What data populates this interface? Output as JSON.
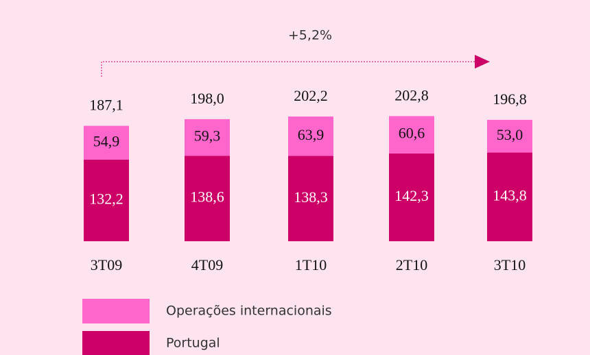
{
  "chart_data": {
    "type": "stacked_bar",
    "annotation": "+5,2%",
    "categories": [
      "3T09",
      "4T09",
      "1T10",
      "2T10",
      "3T10"
    ],
    "series": [
      {
        "name": "Portugal",
        "color": "#cc0066",
        "values": [
          132.2,
          138.6,
          138.3,
          142.3,
          143.8
        ],
        "value_labels": [
          "132,2",
          "138,6",
          "138,3",
          "142,3",
          "143,8"
        ]
      },
      {
        "name": "Operações internacionais",
        "color": "#ff66cc",
        "values": [
          54.9,
          59.3,
          63.9,
          60.6,
          53.0
        ],
        "value_labels": [
          "54,9",
          "59,3",
          "63,9",
          "60,6",
          "53,0"
        ]
      }
    ],
    "totals": [
      187.1,
      198.0,
      202.2,
      202.8,
      196.8
    ],
    "total_labels": [
      "187,1",
      "198,0",
      "202,2",
      "202,8",
      "196,8"
    ]
  }
}
